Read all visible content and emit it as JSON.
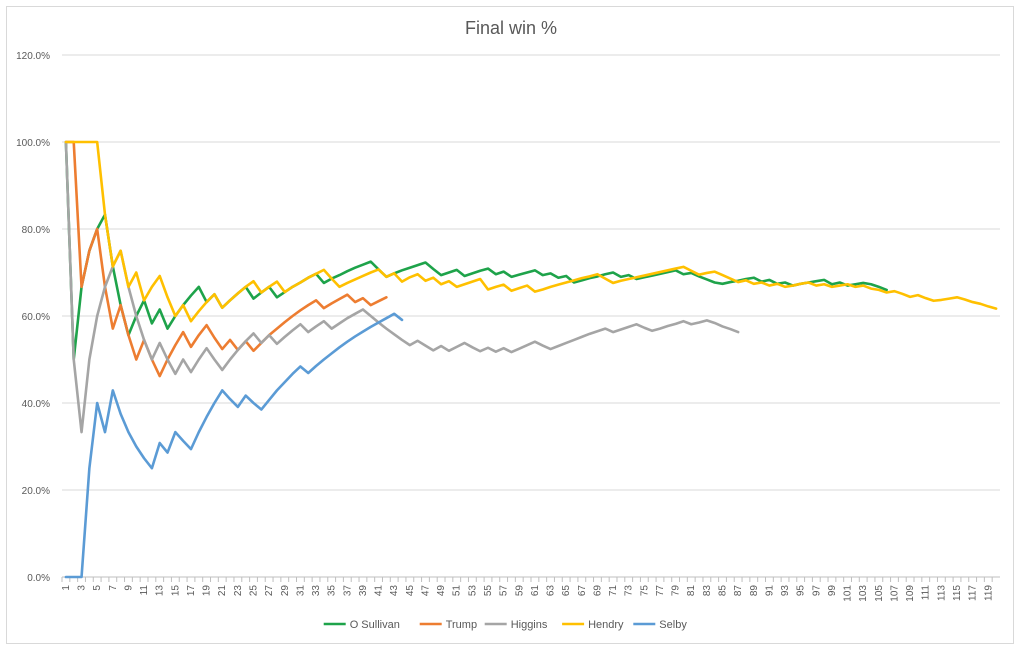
{
  "chart_data": {
    "type": "line",
    "title": "Final win %",
    "xlabel": "",
    "ylabel": "",
    "x_start": 1,
    "x_end": 120,
    "ylim": [
      0,
      120
    ],
    "y_ticks": [
      0,
      20,
      40,
      60,
      80,
      100,
      120
    ],
    "y_tick_labels": [
      "0.0%",
      "20.0%",
      "40.0%",
      "60.0%",
      "80.0%",
      "100.0%",
      "120.0%"
    ],
    "x_tick_labels": [
      "1",
      "3",
      "5",
      "7",
      "9",
      "11",
      "13",
      "15",
      "17",
      "19",
      "21",
      "23",
      "25",
      "27",
      "29",
      "31",
      "33",
      "35",
      "37",
      "39",
      "41",
      "43",
      "45",
      "47",
      "49",
      "51",
      "53",
      "55",
      "57",
      "59",
      "61",
      "63",
      "65",
      "67",
      "69",
      "71",
      "73",
      "75",
      "77",
      "79",
      "81",
      "83",
      "85",
      "87",
      "89",
      "91",
      "93",
      "95",
      "97",
      "99",
      "101",
      "103",
      "105",
      "107",
      "109",
      "111",
      "113",
      "115",
      "117",
      "119"
    ],
    "grid": true,
    "legend_position": "bottom",
    "series": [
      {
        "name": "O Sullivan",
        "color": "#1ea34a",
        "values": [
          100,
          50,
          66.7,
          75,
          80,
          83.3,
          71.4,
          62.5,
          55.6,
          60,
          63.6,
          58.3,
          61.5,
          57.1,
          60,
          62.5,
          64.7,
          66.7,
          63.2,
          65,
          61.9,
          63.6,
          65.2,
          66.7,
          64,
          65.4,
          66.7,
          64.3,
          65.5,
          66.7,
          67.7,
          68.8,
          69.7,
          67.6,
          68.6,
          69.4,
          70.3,
          71.1,
          71.8,
          72.5,
          70.7,
          69,
          69.8,
          70.5,
          71.1,
          71.7,
          72.3,
          70.8,
          69.4,
          70,
          70.6,
          69.2,
          69.8,
          70.4,
          70.9,
          69.6,
          70.2,
          69,
          69.5,
          70,
          70.5,
          69.4,
          69.8,
          68.8,
          69.2,
          67.7,
          68.2,
          68.7,
          69.1,
          69.6,
          70,
          69,
          69.4,
          68.5,
          68.9,
          69.3,
          69.7,
          70.1,
          70.5,
          69.6,
          69.9,
          69.1,
          68.4,
          67.7,
          67.4,
          67.8,
          68.1,
          68.5,
          68.8,
          67.9,
          68.3,
          67.4,
          67.7,
          67,
          67.4,
          67.7,
          68,
          68.3,
          67.3,
          67.7,
          67,
          67.3,
          67.6,
          67.3,
          66.7,
          66
        ]
      },
      {
        "name": "Trump",
        "color": "#ed7d31",
        "values": [
          100,
          100,
          66.7,
          75,
          80,
          66.7,
          57.1,
          62.5,
          55.6,
          50,
          54.5,
          50,
          46.2,
          50,
          53.3,
          56.3,
          52.9,
          55.6,
          57.9,
          55,
          52.4,
          54.5,
          52.2,
          54.2,
          52,
          53.8,
          55.6,
          57.1,
          58.6,
          60,
          61.3,
          62.5,
          63.6,
          61.8,
          62.9,
          63.9,
          64.9,
          63.2,
          64.1,
          62.5,
          63.4,
          64.3
        ]
      },
      {
        "name": "Higgins",
        "color": "#a5a5a5",
        "values": [
          100,
          50,
          33.3,
          50,
          60,
          66.7,
          71.4,
          75,
          66.7,
          60,
          54.5,
          50,
          53.8,
          50,
          46.7,
          50,
          47.1,
          50,
          52.6,
          50,
          47.6,
          50,
          52.2,
          54.2,
          56,
          53.8,
          55.6,
          53.6,
          55.2,
          56.7,
          58.1,
          56.3,
          57.6,
          58.8,
          57.1,
          58.3,
          59.5,
          60.5,
          61.5,
          60,
          58.5,
          57.1,
          55.8,
          54.5,
          53.3,
          54.3,
          53.2,
          52.1,
          53.1,
          52,
          52.9,
          53.8,
          52.8,
          51.9,
          52.7,
          51.8,
          52.6,
          51.7,
          52.5,
          53.3,
          54.1,
          53.2,
          52.4,
          53.1,
          53.8,
          54.5,
          55.2,
          55.9,
          56.5,
          57.1,
          56.3,
          56.9,
          57.5,
          58.1,
          57.3,
          56.6,
          57.1,
          57.7,
          58.2,
          58.8,
          58.1,
          58.5,
          59,
          58.4,
          57.6,
          57,
          56.3
        ]
      },
      {
        "name": "Hendry",
        "color": "#ffc000",
        "values": [
          100,
          100,
          100,
          100,
          100,
          83.3,
          71.4,
          75,
          66.7,
          70,
          63.6,
          66.7,
          69.2,
          64.3,
          60,
          62.5,
          58.8,
          61.1,
          63.2,
          65,
          61.9,
          63.6,
          65.2,
          66.7,
          68,
          65.4,
          66.7,
          67.9,
          65.5,
          66.7,
          67.7,
          68.8,
          69.7,
          70.6,
          68.6,
          66.7,
          67.6,
          68.4,
          69.2,
          70,
          70.7,
          69,
          69.8,
          67.9,
          68.9,
          69.6,
          68.1,
          68.8,
          67.3,
          68,
          66.7,
          67.3,
          67.9,
          68.5,
          66.1,
          66.7,
          67.2,
          65.8,
          66.4,
          67,
          65.6,
          66.1,
          66.7,
          67.2,
          67.7,
          68.2,
          68.7,
          69.1,
          69.6,
          68.6,
          67.6,
          68.1,
          68.5,
          68.9,
          69.3,
          69.7,
          70.1,
          70.5,
          70.9,
          71.3,
          70.4,
          69.5,
          69.9,
          70.2,
          69.4,
          68.6,
          67.8,
          68.2,
          67.4,
          67.7,
          67,
          67.4,
          66.7,
          67,
          67.4,
          67.7,
          67,
          67.3,
          66.7,
          67,
          67.3,
          66.7,
          67,
          66.3,
          66,
          65.4,
          65.7,
          65.1,
          64.4,
          64.8,
          64.1,
          63.5,
          63.7,
          64,
          64.3,
          63.8,
          63.2,
          62.8,
          62.2,
          61.7
        ]
      },
      {
        "name": "Selby",
        "color": "#5b9bd5",
        "values": [
          0,
          0,
          0,
          25,
          40,
          33.3,
          42.9,
          37.5,
          33.3,
          30,
          27.3,
          25,
          30.8,
          28.6,
          33.3,
          31.3,
          29.4,
          33.3,
          36.8,
          40,
          42.9,
          40.9,
          39.1,
          41.7,
          40,
          38.5,
          40.7,
          42.9,
          44.8,
          46.7,
          48.4,
          46.9,
          48.5,
          50,
          51.4,
          52.8,
          54.1,
          55.3,
          56.4,
          57.5,
          58.5,
          59.5,
          60.5,
          59.1
        ]
      }
    ]
  }
}
